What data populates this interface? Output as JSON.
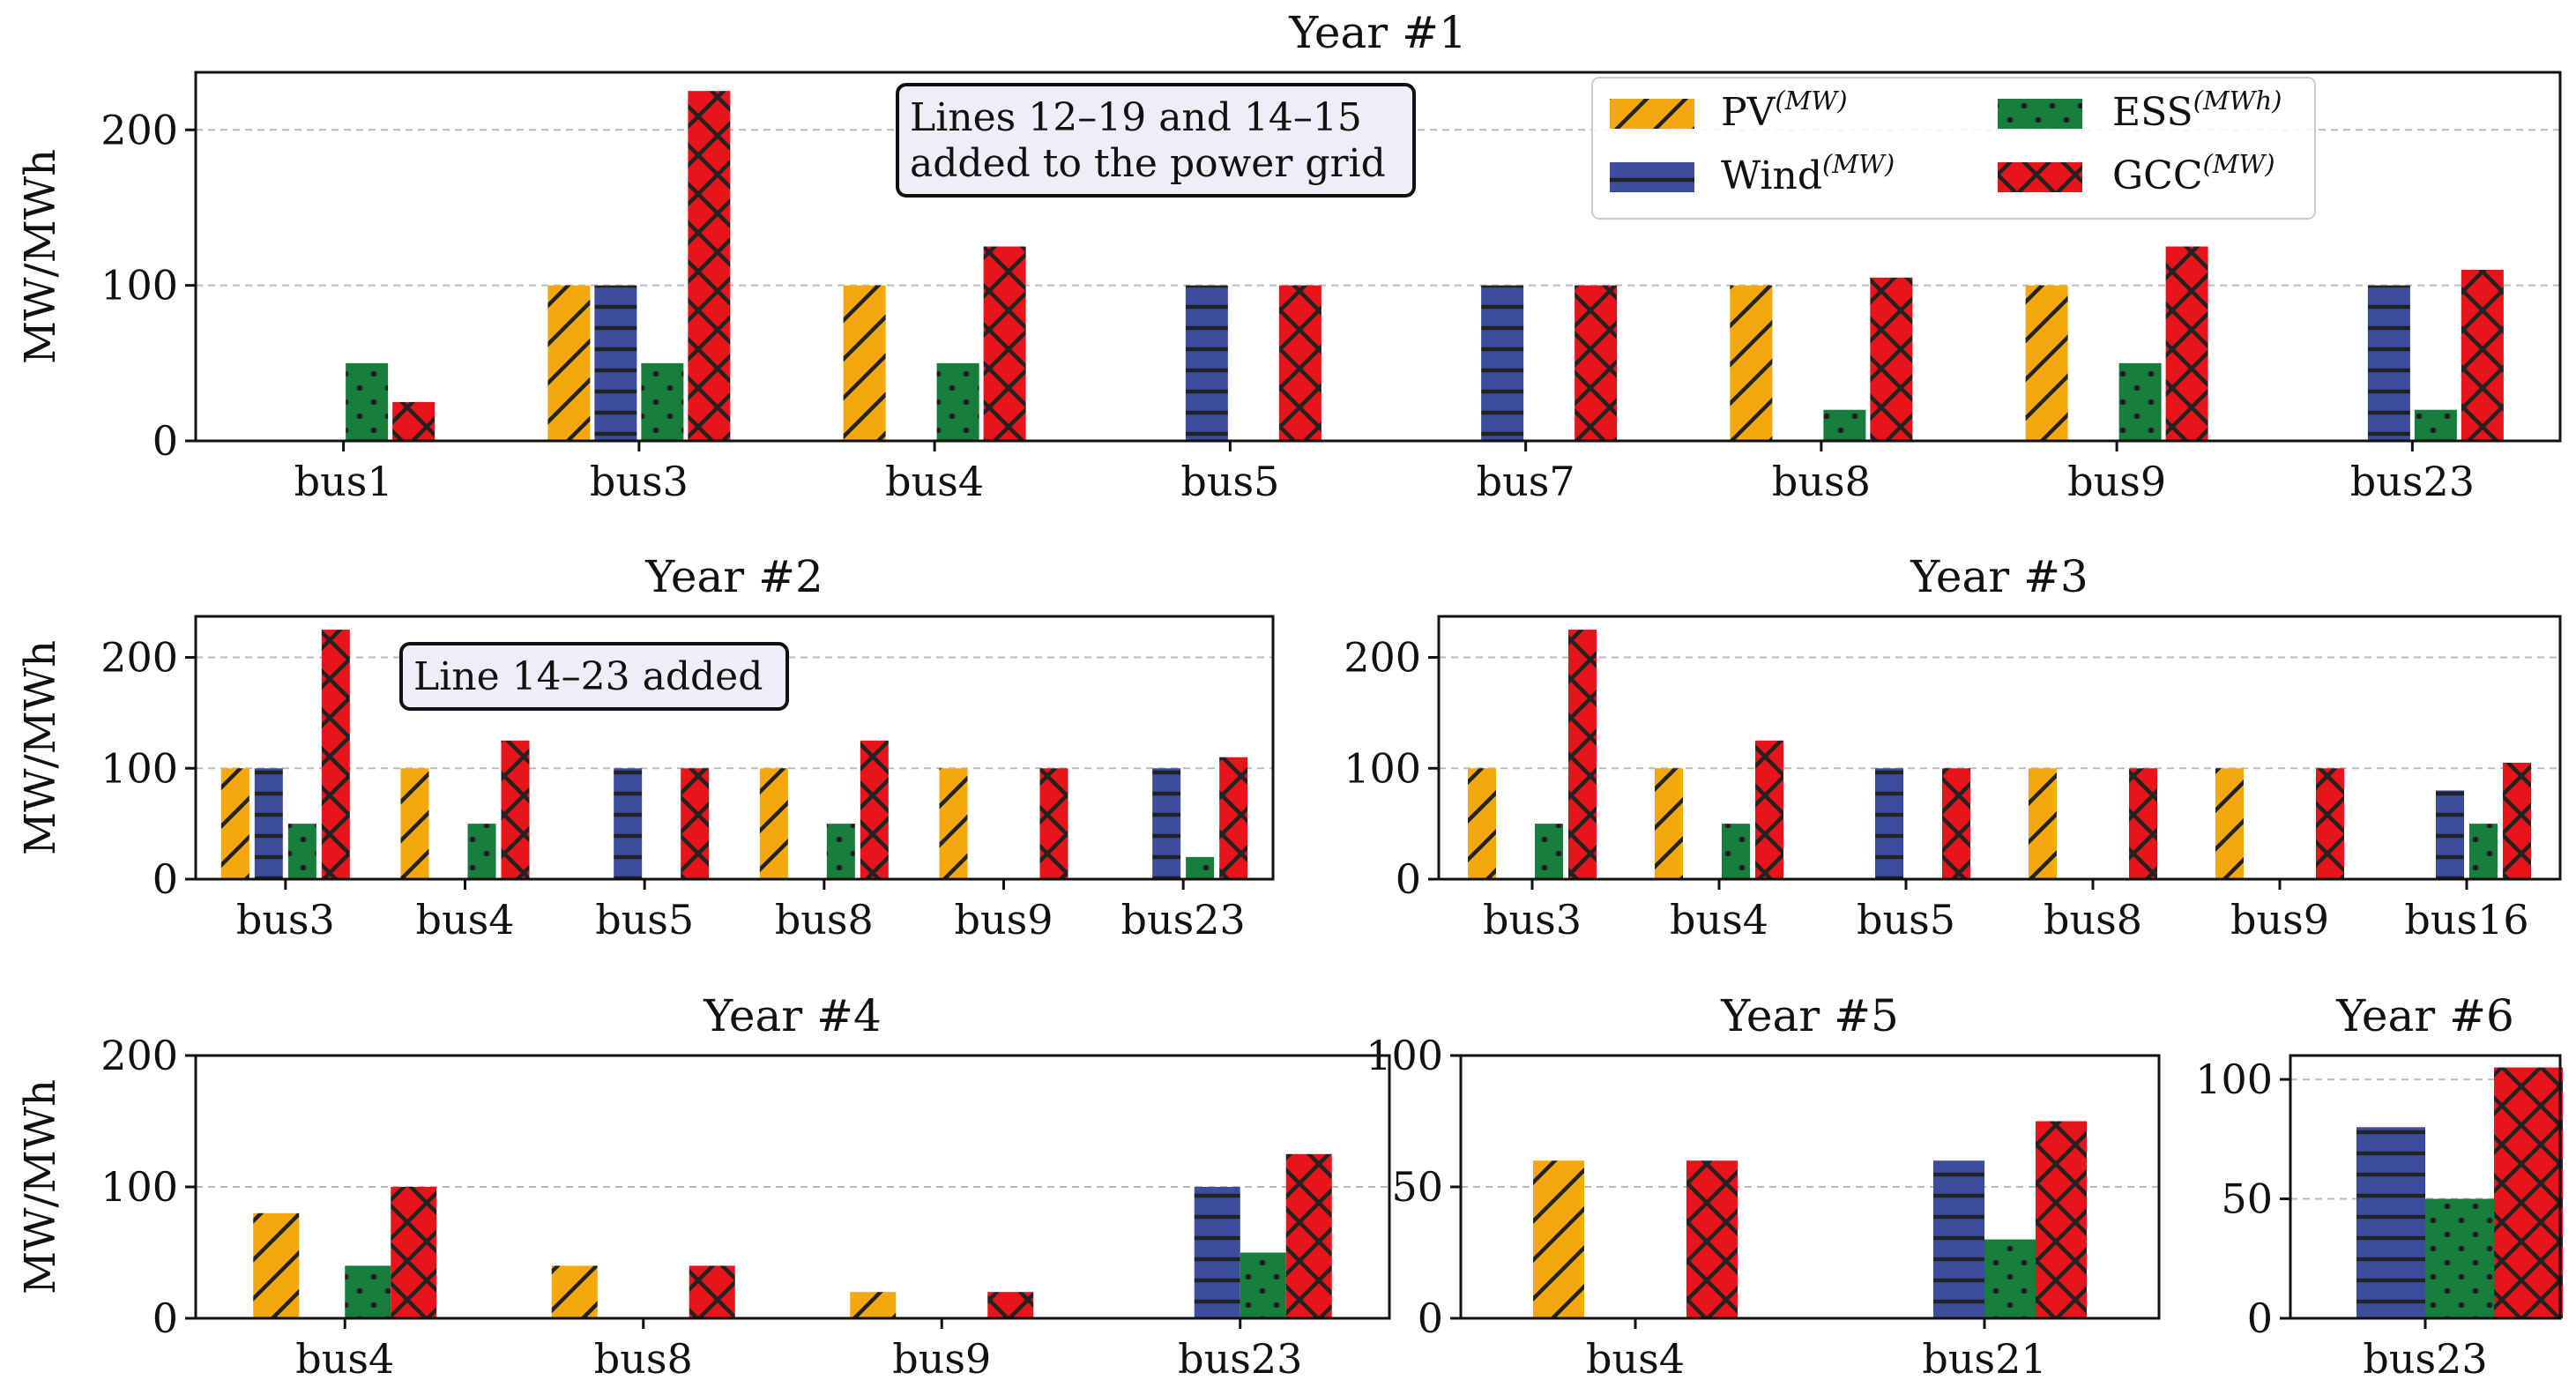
{
  "chart_data": [
    {
      "type": "bar",
      "title": "Year #1",
      "ylabel": "MW/MWh",
      "ylim": [
        0,
        237
      ],
      "yticks": [
        0,
        100,
        200
      ],
      "grid": true,
      "categories": [
        "bus1",
        "bus3",
        "bus4",
        "bus5",
        "bus7",
        "bus8",
        "bus9",
        "bus23"
      ],
      "series": [
        {
          "name": "PV",
          "values": [
            0,
            100,
            100,
            0,
            0,
            100,
            100,
            0
          ]
        },
        {
          "name": "Wind",
          "values": [
            0,
            100,
            0,
            100,
            100,
            0,
            0,
            100
          ]
        },
        {
          "name": "ESS",
          "values": [
            50,
            50,
            50,
            0,
            0,
            20,
            50,
            20
          ]
        },
        {
          "name": "GCC",
          "values": [
            25,
            225,
            125,
            100,
            100,
            105,
            125,
            110
          ]
        }
      ],
      "annotation": [
        "Lines 12–19 and 14–15",
        "added to the power grid"
      ]
    },
    {
      "type": "bar",
      "title": "Year #2",
      "ylabel": "MW/MWh",
      "ylim": [
        0,
        237
      ],
      "yticks": [
        0,
        100,
        200
      ],
      "grid": true,
      "categories": [
        "bus3",
        "bus4",
        "bus5",
        "bus8",
        "bus9",
        "bus23"
      ],
      "series": [
        {
          "name": "PV",
          "values": [
            100,
            100,
            0,
            100,
            100,
            0
          ]
        },
        {
          "name": "Wind",
          "values": [
            100,
            0,
            100,
            0,
            0,
            100
          ]
        },
        {
          "name": "ESS",
          "values": [
            50,
            50,
            0,
            50,
            0,
            20
          ]
        },
        {
          "name": "GCC",
          "values": [
            225,
            125,
            100,
            125,
            100,
            110
          ]
        }
      ],
      "annotation": [
        "Line 14–23 added"
      ]
    },
    {
      "type": "bar",
      "title": "Year #3",
      "ylabel": "",
      "ylim": [
        0,
        237
      ],
      "yticks": [
        0,
        100,
        200
      ],
      "grid": true,
      "categories": [
        "bus3",
        "bus4",
        "bus5",
        "bus8",
        "bus9",
        "bus16"
      ],
      "series": [
        {
          "name": "PV",
          "values": [
            100,
            100,
            0,
            100,
            100,
            0
          ]
        },
        {
          "name": "Wind",
          "values": [
            0,
            0,
            100,
            0,
            0,
            80
          ]
        },
        {
          "name": "ESS",
          "values": [
            50,
            50,
            0,
            0,
            0,
            50
          ]
        },
        {
          "name": "GCC",
          "values": [
            225,
            125,
            100,
            100,
            100,
            105
          ]
        }
      ]
    },
    {
      "type": "bar",
      "title": "Year #4",
      "ylabel": "MW/MWh",
      "ylim": [
        0,
        200
      ],
      "yticks": [
        0,
        100,
        200
      ],
      "grid": true,
      "categories": [
        "bus4",
        "bus8",
        "bus9",
        "bus23"
      ],
      "series": [
        {
          "name": "PV",
          "values": [
            80,
            40,
            20,
            0
          ]
        },
        {
          "name": "Wind",
          "values": [
            0,
            0,
            0,
            100
          ]
        },
        {
          "name": "ESS",
          "values": [
            40,
            0,
            0,
            50
          ]
        },
        {
          "name": "GCC",
          "values": [
            100,
            40,
            20,
            125
          ]
        }
      ]
    },
    {
      "type": "bar",
      "title": "Year #5",
      "ylabel": "",
      "ylim": [
        0,
        100
      ],
      "yticks": [
        0,
        50,
        100
      ],
      "grid": true,
      "categories": [
        "bus4",
        "bus21"
      ],
      "series": [
        {
          "name": "PV",
          "values": [
            60,
            0
          ]
        },
        {
          "name": "Wind",
          "values": [
            0,
            60
          ]
        },
        {
          "name": "ESS",
          "values": [
            0,
            30
          ]
        },
        {
          "name": "GCC",
          "values": [
            60,
            75
          ]
        }
      ]
    },
    {
      "type": "bar",
      "title": "Year #6",
      "ylabel": "",
      "ylim": [
        0,
        110
      ],
      "yticks": [
        0,
        50,
        100
      ],
      "grid": true,
      "categories": [
        "bus23"
      ],
      "series": [
        {
          "name": "PV",
          "values": [
            0
          ]
        },
        {
          "name": "Wind",
          "values": [
            80
          ]
        },
        {
          "name": "ESS",
          "values": [
            50
          ]
        },
        {
          "name": "GCC",
          "values": [
            105
          ]
        }
      ]
    }
  ],
  "legend": {
    "placement": "top-right",
    "items": [
      {
        "name": "PV",
        "unit": "(MW)"
      },
      {
        "name": "Wind",
        "unit": "(MW)"
      },
      {
        "name": "ESS",
        "unit": "(MWh)"
      },
      {
        "name": "GCC",
        "unit": "(MW)"
      }
    ]
  },
  "colors": {
    "PV": "#f5a80c",
    "Wind": "#3d4c9c",
    "ESS": "#177d3c",
    "GCC": "#e8141c",
    "grid": "#bbbbbb",
    "frame": "#111111"
  },
  "hatches": {
    "PV": "diagonal",
    "Wind": "horizontal",
    "ESS": "dots",
    "GCC": "cross"
  }
}
